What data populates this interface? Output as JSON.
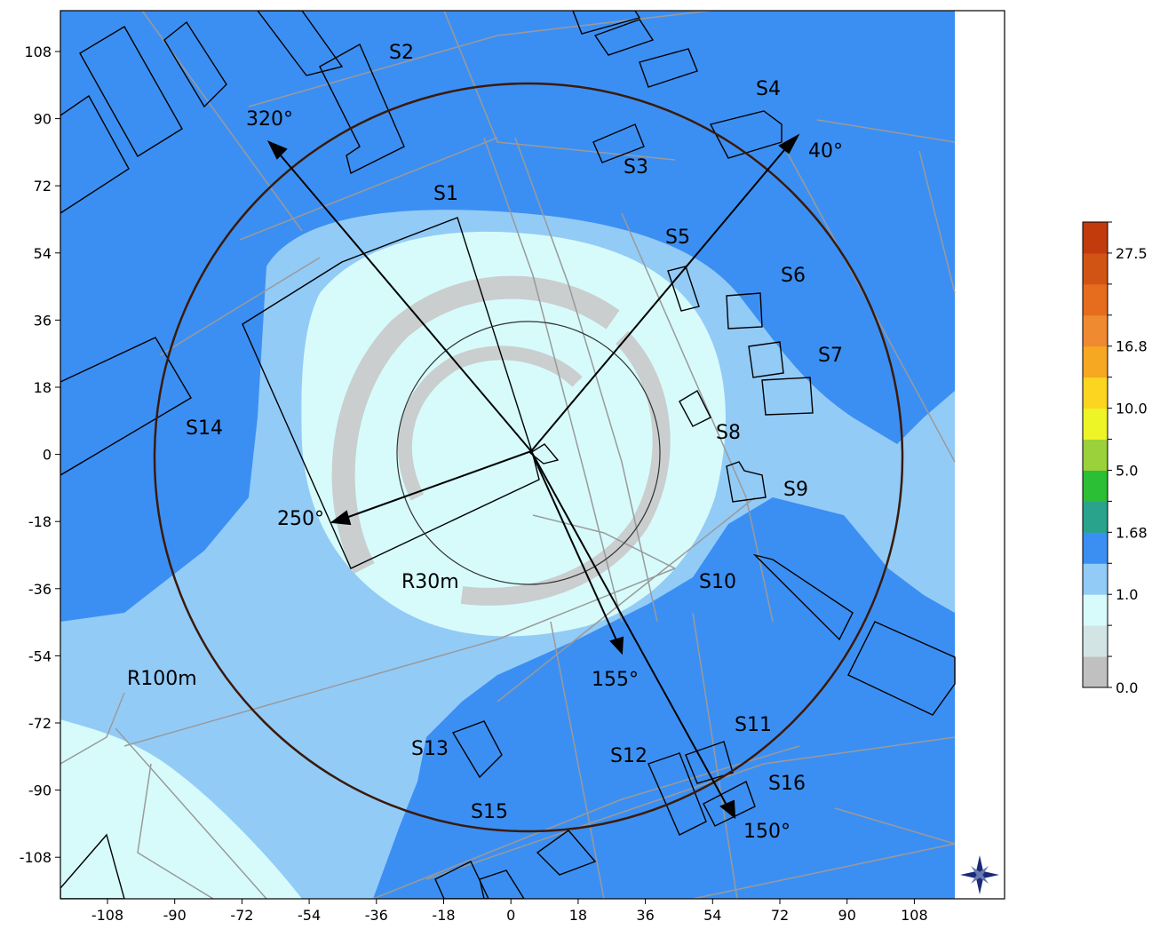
{
  "x_ticks": [
    "-108",
    "-90",
    "-72",
    "-54",
    "-36",
    "-18",
    "0",
    "18",
    "36",
    "54",
    "72",
    "90",
    "108"
  ],
  "y_ticks": [
    "108",
    "90",
    "72",
    "54",
    "36",
    "18",
    "0",
    "-18",
    "-36",
    "-54",
    "-72",
    "-90",
    "-108"
  ],
  "site_labels": [
    "S1",
    "S2",
    "S3",
    "S4",
    "S5",
    "S6",
    "S7",
    "S8",
    "S9",
    "S10",
    "S11",
    "S12",
    "S13",
    "S14",
    "S15",
    "S16"
  ],
  "ring_labels": {
    "inner": "R30m",
    "outer": "R100m"
  },
  "direction_labels": [
    "320°",
    "40°",
    "250°",
    "155°",
    "150°"
  ],
  "colorbar": {
    "labels": [
      "27.5",
      "16.8",
      "10.0",
      "5.0",
      "1.68",
      "1.0",
      "0.0"
    ],
    "colors": [
      "#c0c0c0",
      "#d3e4e4",
      "#d7fbfb",
      "#93cbf7",
      "#3c8ff2",
      "#2aa38c",
      "#2bbf35",
      "#9bd13a",
      "#eef526",
      "#fbd51f",
      "#f7a823",
      "#f08a31",
      "#e66c1e",
      "#d25414",
      "#c23b0d"
    ]
  },
  "background_colors": {
    "outer": "#3c8ff2",
    "mid": "#93cbf7",
    "light": "#d7fbfb",
    "gray": "#c9c9c9"
  },
  "compass_icon": "compass-rose-icon"
}
